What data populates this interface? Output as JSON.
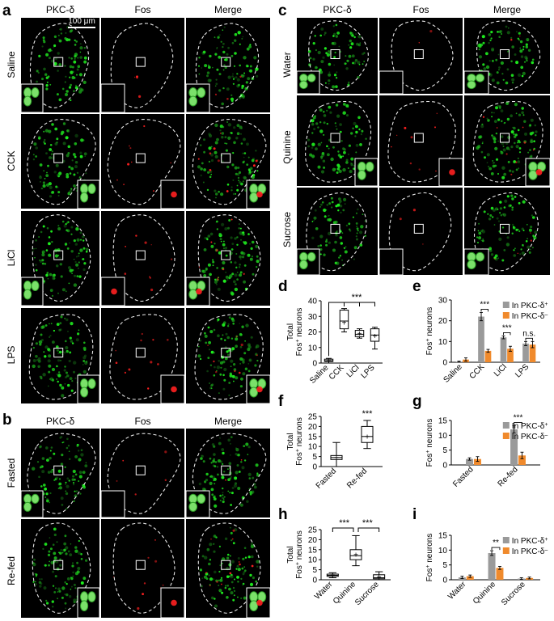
{
  "figure": {
    "panel_letters": [
      "a",
      "b",
      "c",
      "d",
      "e",
      "f",
      "g",
      "h",
      "i"
    ],
    "micrographs": {
      "a": {
        "columns": [
          "PKC-δ",
          "Fos",
          "Merge"
        ],
        "rows": [
          "Saline",
          "CCK",
          "LiCl",
          "LPS"
        ],
        "scale_bar": "100 μm"
      },
      "b": {
        "columns": [
          "PKC-δ",
          "Fos",
          "Merge"
        ],
        "rows": [
          "Fasted",
          "Re-fed"
        ]
      },
      "c": {
        "columns": [
          "PKC-δ",
          "Fos",
          "Merge"
        ],
        "rows": [
          "Water",
          "Quinine",
          "Sucrose"
        ]
      }
    },
    "colors": {
      "pkc_green": "#3fd23a",
      "fos_red": "#ff2020",
      "in_pkc_pos": "#9a9a9a",
      "in_pkc_neg": "#f08a2c"
    }
  },
  "chart_data": [
    {
      "id": "d",
      "type": "box",
      "ylabel_top": "Total",
      "ylabel_bottom": "Fos",
      "ylabel_sup": "+",
      "ylabel_tail": " neurons",
      "categories": [
        "Saline",
        "CCK",
        "LiCl",
        "LPS"
      ],
      "ylim": [
        0,
        40
      ],
      "yticks": [
        "0",
        "10",
        "20",
        "30",
        "40"
      ],
      "boxes": [
        {
          "min": 0,
          "q1": 1,
          "median": 1.5,
          "q3": 2.5,
          "max": 3,
          "mean": 1.6
        },
        {
          "min": 20,
          "q1": 22,
          "median": 27,
          "q3": 34,
          "max": 35,
          "mean": 26
        },
        {
          "min": 16,
          "q1": 17,
          "median": 18.5,
          "q3": 21,
          "max": 22,
          "mean": 19
        },
        {
          "min": 9,
          "q1": 14,
          "median": 18,
          "q3": 22,
          "max": 23,
          "mean": 17.5
        }
      ],
      "significance": "***"
    },
    {
      "id": "e",
      "type": "bar",
      "ylabel": "Fos",
      "ylabel_sup": "+",
      "ylabel_tail": " neurons",
      "categories": [
        "Saline",
        "CCK",
        "LiCl",
        "LPS"
      ],
      "ylim": [
        0,
        30
      ],
      "yticks": [
        "0",
        "10",
        "20",
        "30"
      ],
      "series": [
        {
          "name": "In PKC-δ",
          "sup": "+",
          "values": [
            0.3,
            22,
            12,
            9
          ],
          "errors": [
            0.2,
            2,
            0.7,
            1
          ]
        },
        {
          "name": "In PKC-δ",
          "sup": "–",
          "values": [
            1.3,
            5.5,
            6.5,
            8.5
          ],
          "errors": [
            0.8,
            0.7,
            1.2,
            1.5
          ]
        }
      ],
      "annotations": [
        "***",
        "***",
        "n.s."
      ]
    },
    {
      "id": "f",
      "type": "box",
      "ylabel_top": "Total",
      "ylabel_bottom": "Fos",
      "ylabel_sup": "+",
      "ylabel_tail": " neurons",
      "categories": [
        "Fasted",
        "Re-fed"
      ],
      "ylim": [
        0,
        25
      ],
      "yticks": [
        "0",
        "5",
        "10",
        "15",
        "20",
        "25"
      ],
      "boxes": [
        {
          "min": 0,
          "q1": 3.5,
          "median": 4.5,
          "q3": 5.5,
          "max": 12,
          "mean": 4.5
        },
        {
          "min": 9,
          "q1": 12,
          "median": 15,
          "q3": 20,
          "max": 23,
          "mean": 15
        }
      ],
      "significance": "***"
    },
    {
      "id": "g",
      "type": "bar",
      "ylabel": "Fos",
      "ylabel_sup": "+",
      "ylabel_tail": " neurons",
      "categories": [
        "Fasted",
        "Re-fed"
      ],
      "ylim": [
        0,
        15
      ],
      "yticks": [
        "0",
        "5",
        "10",
        "15"
      ],
      "series": [
        {
          "name": "In PKC-δ",
          "sup": "+",
          "values": [
            2,
            12
          ],
          "errors": [
            0.4,
            1.2
          ]
        },
        {
          "name": "In PKC-δ",
          "sup": "–",
          "values": [
            2,
            3.2
          ],
          "errors": [
            0.8,
            1.1
          ]
        }
      ],
      "annotations": [
        "***"
      ]
    },
    {
      "id": "h",
      "type": "box",
      "ylabel_top": "Total",
      "ylabel_bottom": "Fos",
      "ylabel_sup": "+",
      "ylabel_tail": " neurons",
      "categories": [
        "Water",
        "Quinine",
        "Sucrose"
      ],
      "ylim": [
        0,
        25
      ],
      "yticks": [
        "0",
        "5",
        "10",
        "15",
        "20",
        "25"
      ],
      "boxes": [
        {
          "min": 1,
          "q1": 1.7,
          "median": 2.2,
          "q3": 2.8,
          "max": 3.5,
          "mean": 2.2
        },
        {
          "min": 7,
          "q1": 10,
          "median": 12,
          "q3": 15,
          "max": 22,
          "mean": 12.5
        },
        {
          "min": 0,
          "q1": 0.5,
          "median": 1,
          "q3": 2.5,
          "max": 4,
          "mean": 1.5
        }
      ],
      "significance": [
        "***",
        "***"
      ]
    },
    {
      "id": "i",
      "type": "bar",
      "ylabel": "Fos",
      "ylabel_sup": "+",
      "ylabel_tail": " neurons",
      "categories": [
        "Water",
        "Quinine",
        "Sucrose"
      ],
      "ylim": [
        0,
        15
      ],
      "yticks": [
        "0",
        "5",
        "10",
        "15"
      ],
      "series": [
        {
          "name": "In PKC-δ",
          "sup": "+",
          "values": [
            0.8,
            9,
            0.4
          ],
          "errors": [
            0.4,
            0.8,
            0.3
          ]
        },
        {
          "name": "In PKC-δ",
          "sup": "–",
          "values": [
            1.2,
            4,
            0.6
          ],
          "errors": [
            0.4,
            0.5,
            0.3
          ]
        }
      ],
      "annotations": [
        "**"
      ]
    }
  ]
}
